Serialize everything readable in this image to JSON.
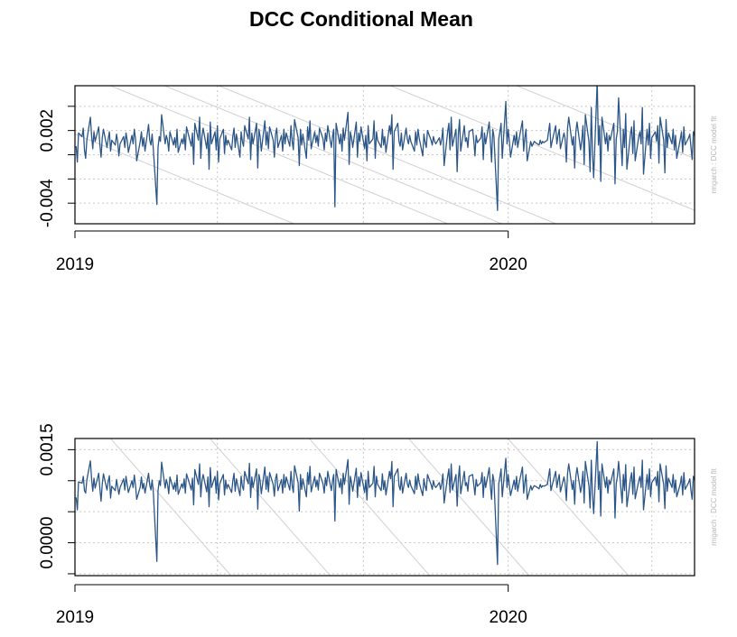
{
  "title": "DCC Conditional Mean",
  "side_note": "rmgarch : DCC model fit",
  "colors": {
    "series": "#2b5687",
    "regression": "#d0d0d0",
    "grid": "#c8c8c8",
    "frame": "#000000"
  },
  "chart_data": [
    {
      "type": "line",
      "title": "DCC Conditional Mean",
      "side_note": "rmgarch : DCC model fit",
      "x_start": "2019-01-02",
      "x_end": "2020-05-29",
      "xlim": [
        "2019-01-01",
        "2020-06-06"
      ],
      "ylim": [
        -0.0057,
        0.0057
      ],
      "y_tick_labels": [
        "-0.004",
        "0.002"
      ],
      "y_ticks": [
        -0.004,
        -0.002,
        0.0,
        0.002,
        0.004
      ],
      "x_tick_labels": [
        "2019",
        "2020"
      ],
      "x_ticks": [
        "2019-01-01",
        "2020-01-01"
      ],
      "grid": true,
      "legend": "none",
      "series": [
        {
          "values": [
            0.0007,
            -0.0006,
            0.0018,
            0.0015,
            0.0022,
            0.0004,
            -0.0003,
            0.0012,
            0.0031,
            0.0016,
            0.0005,
            0.0019,
            0.0011,
            0.0023,
            0.0008,
            -0.0002,
            0.0014,
            0.0021,
            0.0006,
            0.0013,
            0.0019,
            0.0003,
            0.0012,
            0.0008,
            0.0017,
            0.0011,
            -0.0001,
            0.0009,
            0.0015,
            0.0006,
            0.0018,
            0.0012,
            0.0002,
            0.0016,
            0.0009,
            0.0021,
            0.0013,
            -0.0005,
            0.0011,
            0.0019,
            0.0007,
            0.0014,
            0.0003,
            0.0025,
            0.0012,
            0.0008,
            0.0017,
            0.0005,
            -0.0041,
            0.0006,
            0.0015,
            0.0011,
            0.0033,
            0.0009,
            0.0016,
            0.0012,
            0.0003,
            0.0019,
            0.0008,
            0.0014,
            0.0006,
            0.0021,
            0.0002,
            0.0013,
            0.0009,
            0.0017,
            0.0004,
            0.0023,
            0.0011,
            0.0007,
            0.0018,
            -0.0008,
            0.0026,
            0.0012,
            0.0031,
            -0.0003,
            0.0015,
            0.0022,
            0.0005,
            0.0018,
            -0.0012,
            0.0027,
            0.0009,
            0.0019,
            0.0004,
            0.0024,
            -0.0006,
            0.0013,
            0.0021,
            0.0001,
            0.0016,
            0.0008,
            0.0012,
            0.0004,
            0.0015,
            0.0022,
            0.0006,
            0.0017,
            -0.0002,
            0.0019,
            0.0011,
            0.0007,
            0.0024,
            0.0013,
            0.0031,
            -0.0004,
            0.0018,
            0.0009,
            0.0026,
            -0.0011,
            0.0021,
            0.0015,
            0.0003,
            0.0028,
            0.0008,
            0.0019,
            0.0005,
            0.0023,
            0.0012,
            -0.0002,
            0.0017,
            0.0022,
            0.0006,
            0.0016,
            0.0003,
            0.0021,
            0.0009,
            0.0018,
            0.0007,
            0.0024,
            0.0011,
            0.0004,
            0.0029,
            0.0014,
            -0.0009,
            0.0021,
            0.0008,
            0.0017,
            -0.0003,
            0.0023,
            0.0012,
            0.0028,
            0.0005,
            0.0019,
            0.001,
            0.0016,
            0.0007,
            0.0022,
            0.0013,
            0.0004,
            0.0018,
            0.0011,
            0.0024,
            0.0006,
            0.0015,
            0.0021,
            -0.0043,
            0.0026,
            0.0009,
            0.0017,
            0.0003,
            0.0022,
            0.0012,
            0.0035,
            -0.0008,
            0.0019,
            0.0014,
            0.0006,
            0.0027,
            -0.0002,
            0.0018,
            0.0011,
            0.0023,
            0.0005,
            0.0016,
            -0.0005,
            0.0024,
            0.0009,
            0.0013,
            0.0028,
            -0.0003,
            0.0019,
            0.0012,
            0.0006,
            0.0021,
            0.0008,
            0.0015,
            0.0002,
            0.0024,
            0.0017,
            0.0033,
            -0.0012,
            0.0019,
            0.0026,
            0.0011,
            0.0007,
            0.0018,
            0.0004,
            0.0022,
            0.0013,
            0.0009,
            0.0016,
            0.0011,
            0.0003,
            0.0019,
            0.0008,
            0.0021,
            0.0014,
            -0.0001,
            0.0017,
            0.001,
            0.0006,
            0.002,
            0.0012,
            0.0008,
            0.0015,
            0.0011,
            0.0009,
            0.0014,
            0.0008,
            0.0013,
            0.0022,
            -0.0009,
            0.0019,
            0.0026,
            0.0004,
            0.0031,
            0.0007,
            0.0021,
            -0.0014,
            0.0017,
            0.0029,
            0.0003,
            0.0024,
            0.0011,
            0.0014,
            0.0006,
            0.0019,
            0.0021,
            0.0012,
            -0.0001,
            0.0016,
            0.001,
            0.0014,
            0.0023,
            -0.0004,
            0.0018,
            0.0009,
            0.0027,
            0.0011,
            -0.0006,
            0.0021,
            0.0015,
            -0.0046,
            0.0013,
            0.0019,
            0.0026,
            -0.0003,
            0.0044,
            0.0009,
            0.0021,
            0.0011,
            -0.0002,
            0.0016,
            0.0008,
            0.0019,
            0.0006,
            0.0012,
            0.0028,
            0.0003,
            0.0014,
            0.0021,
            -0.0005,
            0.0011,
            0.0007,
            0.0009,
            0.0011,
            0.001,
            0.0008,
            0.0012,
            0.0009,
            0.0011,
            0.001,
            0.0012,
            0.0019,
            0.0026,
            0.0006,
            0.0011,
            0.0024,
            0.0009,
            0.0016,
            0.0021,
            0.0005,
            0.0018,
            0.0013,
            -0.0006,
            0.0022,
            0.0031,
            0.0008,
            0.0015,
            -0.0011,
            0.0019,
            0.0027,
            0.0004,
            0.0012,
            0.0024,
            -0.0008,
            0.0033,
            0.0011,
            -0.0014,
            0.0039,
            0.0002,
            -0.0019,
            0.0061,
            0.0008,
            0.0024,
            -0.0022,
            0.0031,
            0.0009,
            0.0018,
            0.0003,
            0.0016,
            0.0012,
            0.0026,
            -0.0024,
            0.0013,
            0.0019,
            0.0047,
            -0.0009,
            0.0021,
            0.0006,
            0.0034,
            -0.0012,
            0.0017,
            0.0023,
            0.0001,
            0.0028,
            -0.0005,
            0.0015,
            0.0019,
            0.0009,
            0.0039,
            -0.0016,
            0.0021,
            0.0008,
            0.0026,
            -0.0003,
            0.0014,
            0.0019,
            0.0011,
            0.0024,
            -0.0007,
            0.0031,
            0.0012,
            -0.0015,
            0.0029,
            0.0006,
            0.0018,
            0.0009,
            0.0021,
            0.0004,
            0.0016,
            -0.0003,
            0.0013,
            0.0019,
            0.0002,
            0.0023,
            0.0008,
            0.0014,
            0.0017,
            0.0006,
            -0.0004,
            0.0019,
            0.0009,
            0.0016,
            0.0012
          ]
        }
      ]
    },
    {
      "type": "line",
      "side_note": "rmgarch : DCC model fit",
      "x_start": "2019-01-02",
      "x_end": "2020-05-29",
      "xlim": [
        "2019-01-01",
        "2020-06-06"
      ],
      "ylim": [
        -0.00053,
        0.00168
      ],
      "y_tick_labels": [
        "0.0000",
        "0.0015"
      ],
      "y_ticks": [
        -0.0005,
        0.0,
        0.0005,
        0.001,
        0.0015
      ],
      "x_tick_labels": [
        "2019",
        "2020"
      ],
      "x_ticks": [
        "2019-01-01",
        "2020-01-01"
      ],
      "grid": true,
      "legend": "none",
      "series": [
        {
          "values": [
            0.00073,
            0.00053,
            0.00098,
            0.00096,
            0.00107,
            0.00084,
            0.0008,
            0.00101,
            0.00132,
            0.00103,
            0.00083,
            0.00104,
            0.00088,
            0.00112,
            0.00087,
            0.00067,
            0.00095,
            0.00111,
            0.00085,
            0.00099,
            0.00108,
            0.00072,
            0.00091,
            0.00084,
            0.00102,
            0.0009,
            0.00078,
            0.00089,
            0.00103,
            0.00085,
            0.00107,
            0.00094,
            0.00081,
            0.001,
            0.00089,
            0.00109,
            0.00093,
            0.0007,
            0.0009,
            0.00106,
            0.00087,
            0.00096,
            0.0008,
            0.00112,
            0.00093,
            0.00085,
            0.00101,
            0.00082,
            -0.0003,
            0.00084,
            0.001,
            0.00092,
            0.0013,
            0.00088,
            0.00102,
            0.00094,
            0.00079,
            0.00106,
            0.00086,
            0.00097,
            0.00083,
            0.00109,
            0.00078,
            0.00095,
            0.00088,
            0.00103,
            0.0008,
            0.00111,
            0.00092,
            0.00085,
            0.00104,
            0.00061,
            0.00118,
            0.00094,
            0.00127,
            0.00074,
            0.001,
            0.0011,
            0.00082,
            0.00106,
            0.00058,
            0.00121,
            0.00089,
            0.00107,
            0.0008,
            0.00115,
            0.00069,
            0.00095,
            0.0011,
            0.00077,
            0.00101,
            0.00087,
            0.00094,
            0.00081,
            0.001,
            0.00112,
            0.00083,
            0.00103,
            0.00076,
            0.00107,
            0.00091,
            0.00085,
            0.00115,
            0.00095,
            0.00128,
            0.00073,
            0.00106,
            0.00089,
            0.00119,
            0.00054,
            0.0011,
            0.001,
            0.00079,
            0.00122,
            0.00086,
            0.00107,
            0.00082,
            0.00113,
            0.00094,
            0.00075,
            0.00103,
            0.00111,
            0.00084,
            0.00102,
            0.0008,
            0.0011,
            0.00089,
            0.00106,
            0.00085,
            0.00115,
            0.00092,
            0.00081,
            0.00124,
            0.00097,
            0.00051,
            0.0011,
            0.00086,
            0.00103,
            0.00074,
            0.00113,
            0.00094,
            0.00123,
            0.00082,
            0.00107,
            0.0009,
            0.00101,
            0.00085,
            0.00112,
            0.00095,
            0.0008,
            0.00105,
            0.00092,
            0.00115,
            0.00084,
            0.001,
            0.0011,
            0.00035,
            0.00118,
            0.00089,
            0.00103,
            0.00079,
            0.00112,
            0.00094,
            0.00134,
            0.00062,
            0.00107,
            0.00097,
            0.00083,
            0.0012,
            0.00073,
            0.00106,
            0.00091,
            0.00113,
            0.00081,
            0.00101,
            0.00069,
            0.00115,
            0.00089,
            0.00096,
            0.00123,
            0.00074,
            0.00107,
            0.00094,
            0.00084,
            0.00111,
            0.00086,
            0.001,
            0.00077,
            0.00115,
            0.00103,
            0.00131,
            0.00058,
            0.00107,
            0.00119,
            0.00092,
            0.00085,
            0.00106,
            0.0008,
            0.00112,
            0.00095,
            0.00089,
            0.00101,
            0.00092,
            0.00079,
            0.00107,
            0.00086,
            0.00111,
            0.00097,
            0.00076,
            0.00103,
            0.00091,
            0.00084,
            0.0011,
            0.00094,
            0.00086,
            0.001,
            0.00092,
            0.00089,
            0.00097,
            0.00086,
            0.00095,
            0.00111,
            0.00064,
            0.00107,
            0.00119,
            0.00081,
            0.00127,
            0.00085,
            0.0011,
            0.00059,
            0.00103,
            0.00124,
            0.00079,
            0.00115,
            0.00092,
            0.00097,
            0.00083,
            0.00107,
            0.0011,
            0.00094,
            0.00077,
            0.00102,
            0.00091,
            0.00097,
            0.00113,
            0.00073,
            0.00106,
            0.00089,
            0.00121,
            0.00092,
            0.0007,
            0.0011,
            0.001,
            -0.00035,
            0.00095,
            0.00106,
            0.00119,
            0.00074,
            0.00136,
            0.00089,
            0.0011,
            0.00092,
            0.00076,
            0.00101,
            0.00086,
            0.00107,
            0.00083,
            0.00094,
            0.00122,
            0.0008,
            0.00097,
            0.0011,
            0.0007,
            0.00092,
            0.00085,
            0.00089,
            0.00092,
            0.00091,
            0.00087,
            0.00094,
            0.00089,
            0.00092,
            0.00091,
            0.00094,
            0.00107,
            0.00119,
            0.00084,
            0.00092,
            0.00115,
            0.00089,
            0.00101,
            0.0011,
            0.00082,
            0.00106,
            0.00095,
            0.00068,
            0.00112,
            0.00127,
            0.00086,
            0.001,
            0.00062,
            0.00107,
            0.00121,
            0.00081,
            0.00094,
            0.00115,
            0.00064,
            0.00131,
            0.00092,
            0.00056,
            0.00133,
            0.00079,
            0.00047,
            0.00163,
            0.00086,
            0.00115,
            0.00043,
            0.00127,
            0.00089,
            0.00106,
            0.0008,
            0.00101,
            0.00094,
            0.00119,
            0.0004,
            0.00095,
            0.00107,
            0.00131,
            0.00064,
            0.0011,
            0.00084,
            0.00126,
            0.00058,
            0.00103,
            0.00113,
            0.00078,
            0.00122,
            0.00071,
            0.001,
            0.00107,
            0.00089,
            0.00133,
            0.00053,
            0.0011,
            0.00086,
            0.00119,
            0.00074,
            0.00097,
            0.00106,
            0.00092,
            0.00115,
            0.00066,
            0.00127,
            0.00094,
            0.00055,
            0.00124,
            0.00083,
            0.00104,
            0.00089,
            0.0011,
            0.00081,
            0.00101,
            0.00074,
            0.00095,
            0.00107,
            0.00077,
            0.00113,
            0.00086,
            0.00097,
            0.00103,
            0.00084,
            0.0007,
            0.00107,
            0.00089,
            0.00101,
            0.00094
          ]
        }
      ]
    }
  ]
}
